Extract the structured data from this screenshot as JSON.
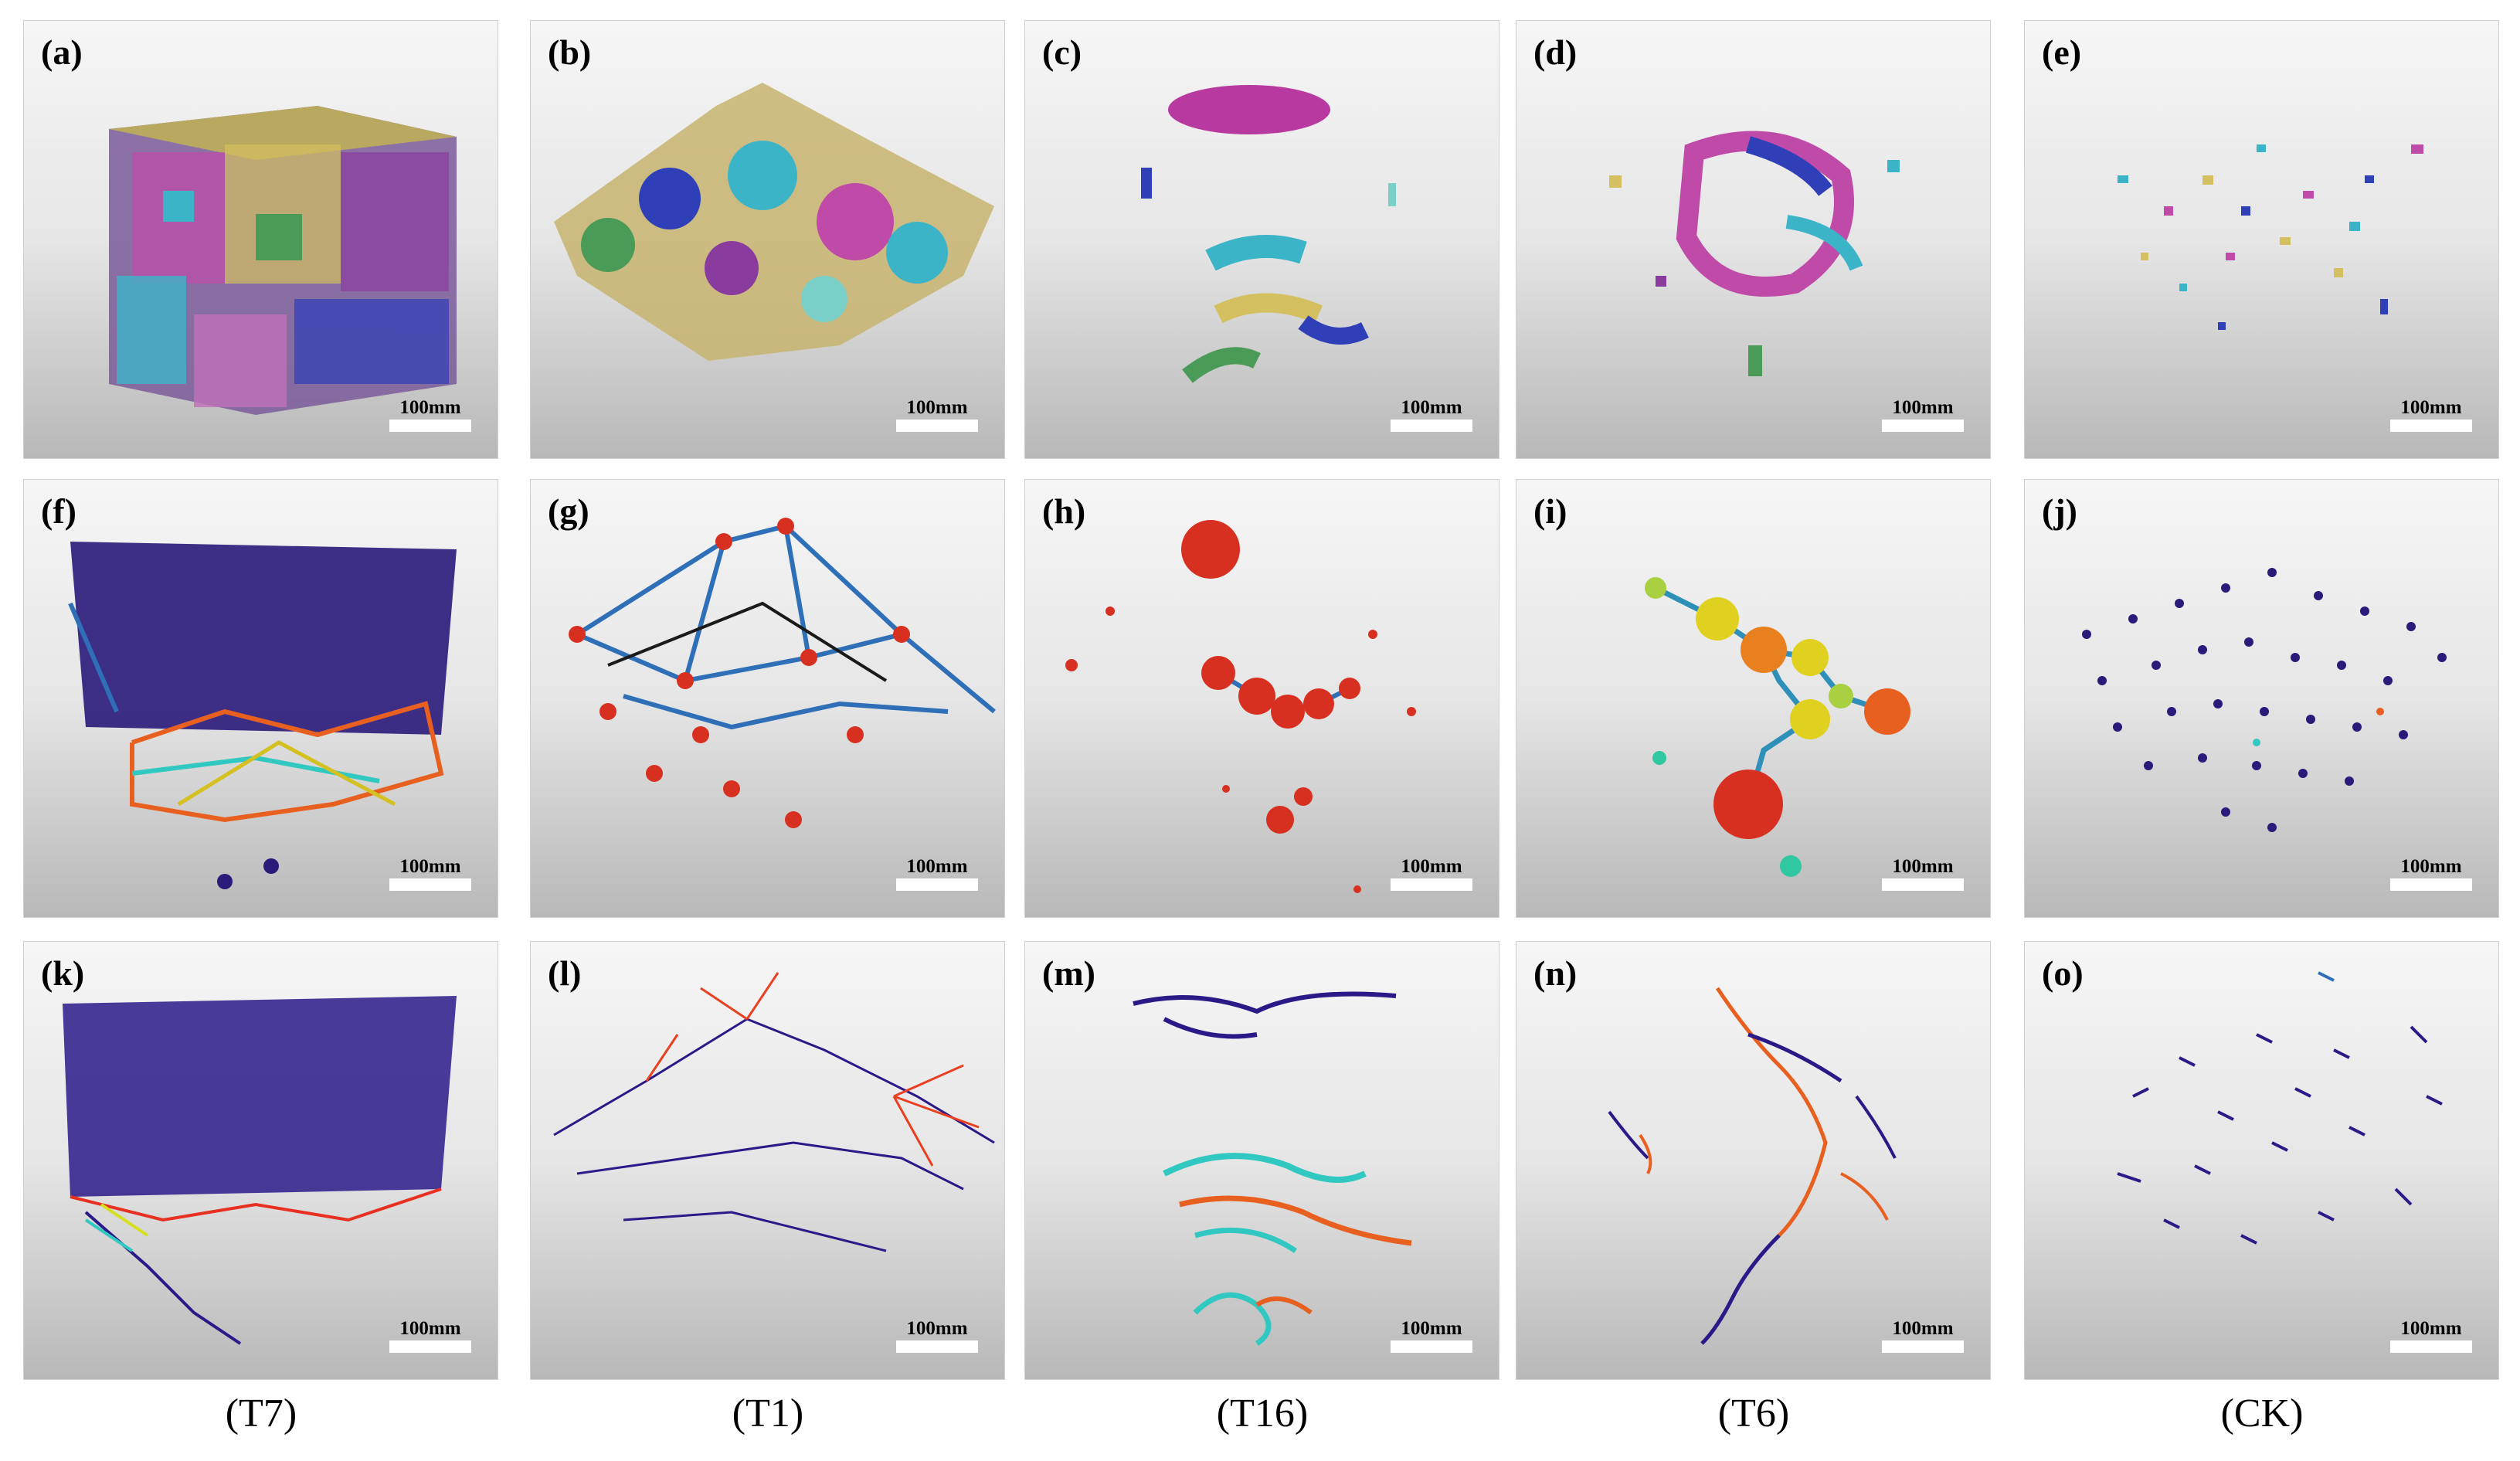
{
  "panels": [
    {
      "label": "(a)",
      "scale": "100mm"
    },
    {
      "label": "(b)",
      "scale": "100mm"
    },
    {
      "label": "(c)",
      "scale": "100mm"
    },
    {
      "label": "(d)",
      "scale": "100mm"
    },
    {
      "label": "(e)",
      "scale": "100mm"
    },
    {
      "label": "(f)",
      "scale": "100mm"
    },
    {
      "label": "(g)",
      "scale": "100mm"
    },
    {
      "label": "(h)",
      "scale": "100mm"
    },
    {
      "label": "(i)",
      "scale": "100mm"
    },
    {
      "label": "(j)",
      "scale": "100mm"
    },
    {
      "label": "(k)",
      "scale": "100mm"
    },
    {
      "label": "(l)",
      "scale": "100mm"
    },
    {
      "label": "(m)",
      "scale": "100mm"
    },
    {
      "label": "(n)",
      "scale": "100mm"
    },
    {
      "label": "(o)",
      "scale": "100mm"
    }
  ],
  "captions": [
    "(T7)",
    "(T1)",
    "(T16)",
    "(T6)",
    "(CK)"
  ],
  "palette": {
    "pores": [
      "#c04aa8",
      "#3cb4c8",
      "#c8b46e",
      "#2e3fb8",
      "#7ad0c8",
      "#d4c060",
      "#4a9a58",
      "#8a3c9e"
    ],
    "network_node_blue": "#2a1a7a",
    "network_node_red": "#d83020",
    "skeleton_main": "#2a1a88",
    "skeleton_hot": "#e86020",
    "skeleton_cyan": "#30c8c0"
  }
}
